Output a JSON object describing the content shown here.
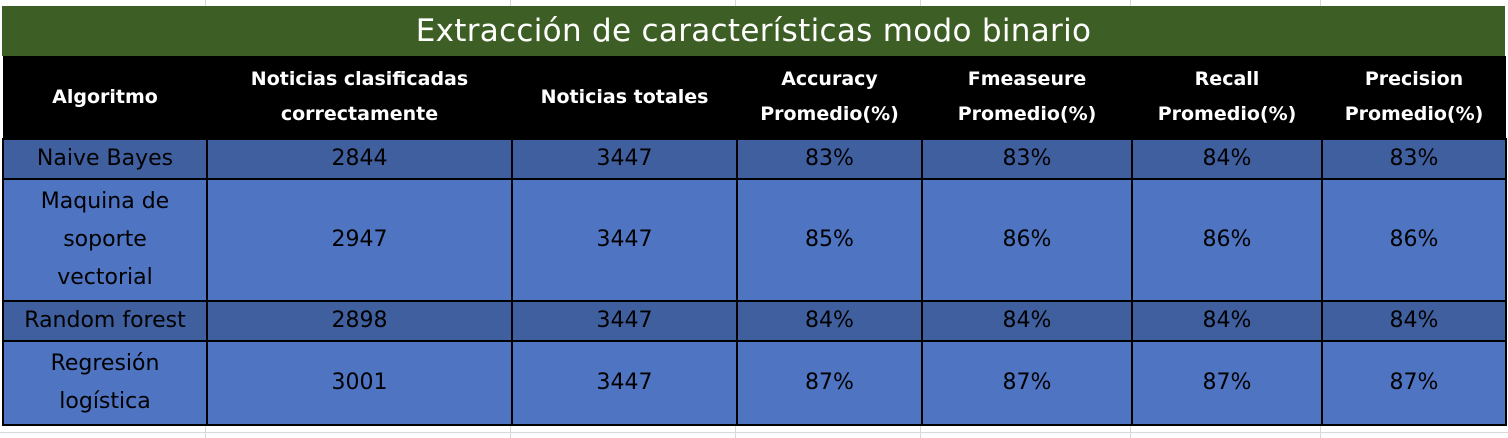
{
  "title": "Extracción de características modo binario",
  "columns": [
    "Algoritmo",
    "Noticias clasificadas correctamente",
    "Noticias totales",
    "Accuracy Promedio(%)",
    "Fmeaseure Promedio(%)",
    "Recall Promedio(%)",
    "Precision Promedio(%)"
  ],
  "rows": [
    [
      "Naive Bayes",
      "2844",
      "3447",
      "83%",
      "83%",
      "84%",
      "83%"
    ],
    [
      "Maquina de soporte vectorial",
      "2947",
      "3447",
      "85%",
      "86%",
      "86%",
      "86%"
    ],
    [
      "Random forest",
      "2898",
      "3447",
      "84%",
      "84%",
      "84%",
      "84%"
    ],
    [
      "Regresión logística",
      "3001",
      "3447",
      "87%",
      "87%",
      "87%",
      "87%"
    ]
  ],
  "colors": {
    "title_bg": "#3d5e24",
    "header_bg": "#000000",
    "row_dark": "#3f5f9f",
    "row_light": "#4e74c2"
  }
}
